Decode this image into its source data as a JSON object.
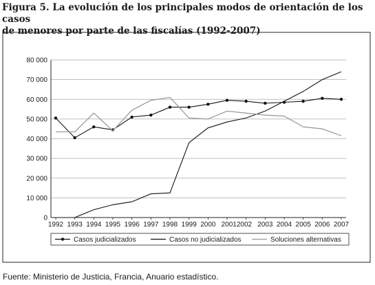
{
  "header": {
    "title_line1": "Figura 5. La evolución de los principales modos de orientación de los casos",
    "title_line2": "de menores por parte de las fiscalías (1992-2007)"
  },
  "footer": {
    "source": "Fuente: Ministerio de Justicia, Francia, Anuario estadístico."
  },
  "chart_data": {
    "type": "line",
    "x": [
      "1992",
      "1993",
      "1994",
      "1995",
      "1996",
      "1997",
      "1998",
      "1999",
      "2000",
      "2001",
      "2002",
      "2003",
      "2004",
      "2005",
      "2006",
      "2007"
    ],
    "x_tick_labels": [
      "1992",
      "1993",
      "1994",
      "1995",
      "1996",
      "1997",
      "1998",
      "1999",
      "2000",
      "2001",
      "2002",
      "2003",
      "2004",
      "2005",
      "2006",
      "2007"
    ],
    "x_tick_labels_printed": [
      "1992",
      "1993",
      "1994",
      "1995",
      "1996",
      "1997",
      "1998",
      "1999",
      "2000",
      "20012002",
      "",
      "2003",
      "2004",
      "2005",
      "2006",
      "2007"
    ],
    "y_ticks": [
      0,
      10000,
      20000,
      30000,
      40000,
      50000,
      60000,
      70000,
      80000
    ],
    "y_tick_labels": [
      "0",
      "10 000",
      "20 000",
      "30 000",
      "40 000",
      "50 000",
      "60 000",
      "70 000",
      "80 000"
    ],
    "ylim": [
      0,
      80000
    ],
    "grid": true,
    "legend_position": "bottom",
    "series": [
      {
        "name": "Casos judicializados",
        "color": "#111111",
        "marker": "dot",
        "values": [
          50500,
          40500,
          46000,
          44500,
          51000,
          52000,
          56000,
          56000,
          57500,
          59500,
          59000,
          58000,
          58500,
          59000,
          60500,
          60000
        ]
      },
      {
        "name": "Casos no judicializados",
        "color": "#111111",
        "marker": "none",
        "values": [
          0,
          0,
          4000,
          6500,
          8000,
          12000,
          12500,
          38000,
          45500,
          48500,
          50500,
          54000,
          59000,
          64000,
          70000,
          74000
        ]
      },
      {
        "name": "Soluciones alternativas",
        "color": "#9a9a9a",
        "marker": "none",
        "values": [
          43500,
          43500,
          53000,
          44000,
          54500,
          59500,
          61000,
          50500,
          50000,
          54000,
          53000,
          52000,
          51500,
          46000,
          45000,
          41500
        ]
      }
    ]
  }
}
